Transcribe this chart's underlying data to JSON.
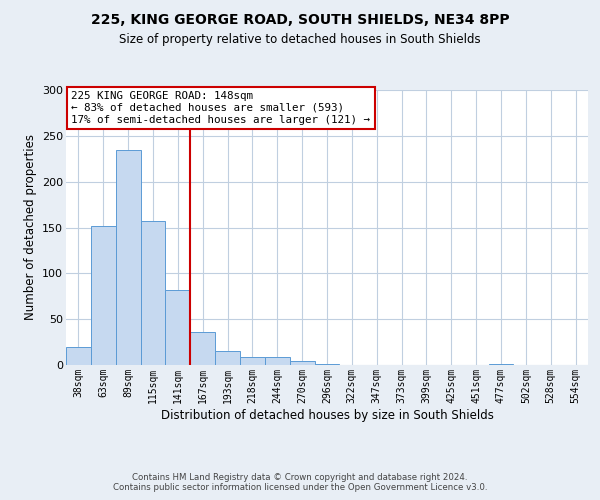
{
  "title": "225, KING GEORGE ROAD, SOUTH SHIELDS, NE34 8PP",
  "subtitle": "Size of property relative to detached houses in South Shields",
  "xlabel": "Distribution of detached houses by size in South Shields",
  "ylabel": "Number of detached properties",
  "bin_labels": [
    "38sqm",
    "63sqm",
    "89sqm",
    "115sqm",
    "141sqm",
    "167sqm",
    "193sqm",
    "218sqm",
    "244sqm",
    "270sqm",
    "296sqm",
    "322sqm",
    "347sqm",
    "373sqm",
    "399sqm",
    "425sqm",
    "451sqm",
    "477sqm",
    "502sqm",
    "528sqm",
    "554sqm"
  ],
  "bar_heights": [
    20,
    152,
    235,
    157,
    82,
    36,
    15,
    9,
    9,
    4,
    1,
    0,
    0,
    0,
    0,
    0,
    0,
    1,
    0,
    0,
    0
  ],
  "bar_color": "#c6d9f0",
  "bar_edge_color": "#5b9bd5",
  "vline_color": "#cc0000",
  "vline_pos": 4.5,
  "ylim": [
    0,
    300
  ],
  "yticks": [
    0,
    50,
    100,
    150,
    200,
    250,
    300
  ],
  "annotation_line1": "225 KING GEORGE ROAD: 148sqm",
  "annotation_line2": "← 83% of detached houses are smaller (593)",
  "annotation_line3": "17% of semi-detached houses are larger (121) →",
  "annotation_box_color": "#cc0000",
  "footer_line1": "Contains HM Land Registry data © Crown copyright and database right 2024.",
  "footer_line2": "Contains public sector information licensed under the Open Government Licence v3.0.",
  "background_color": "#e8eef5",
  "plot_bg_color": "#ffffff",
  "grid_color": "#c0cfe0"
}
